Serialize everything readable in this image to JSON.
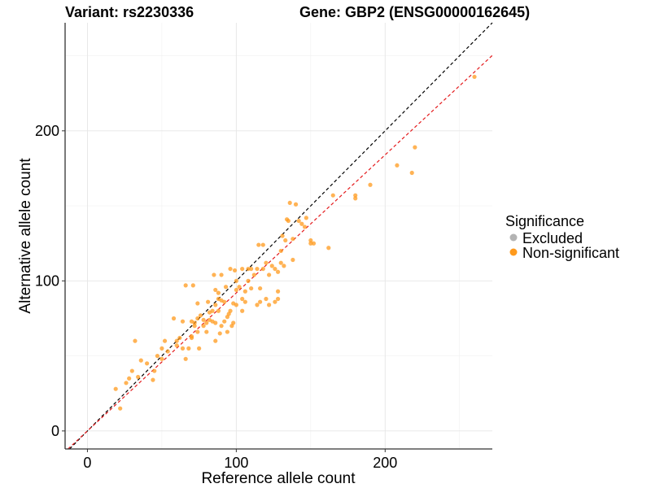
{
  "chart_data": {
    "type": "scatter",
    "title_left": "Variant: rs2230336",
    "title_right": "Gene: GBP2 (ENSG00000162645)",
    "xlabel": "Reference allele count",
    "ylabel": "Alternative allele count",
    "xlim": [
      -15,
      272
    ],
    "ylim": [
      -12,
      272
    ],
    "xticks": [
      0,
      100,
      200
    ],
    "yticks": [
      0,
      100,
      200
    ],
    "grid": true,
    "legend": {
      "title": "Significance",
      "placement": "right",
      "entries": [
        {
          "name": "Excluded",
          "color": "#b3b3b3"
        },
        {
          "name": "Non-significant",
          "color": "#ff9a1c"
        }
      ]
    },
    "reference_lines": [
      {
        "name": "identity",
        "color": "#000000",
        "slope": 1.0,
        "intercept": 0
      },
      {
        "name": "fit",
        "color": "#e41a1c",
        "slope": 0.92,
        "intercept": 0
      }
    ],
    "series": [
      {
        "name": "Non-significant",
        "color": "#ff9a1c",
        "points": [
          [
            19,
            28
          ],
          [
            22,
            15
          ],
          [
            26,
            32
          ],
          [
            28,
            35
          ],
          [
            30,
            40
          ],
          [
            32,
            60
          ],
          [
            34,
            36
          ],
          [
            36,
            47
          ],
          [
            40,
            45
          ],
          [
            44,
            34
          ],
          [
            45,
            40
          ],
          [
            47,
            50
          ],
          [
            50,
            55
          ],
          [
            50,
            48
          ],
          [
            52,
            60
          ],
          [
            54,
            53
          ],
          [
            58,
            75
          ],
          [
            60,
            60
          ],
          [
            60,
            57
          ],
          [
            62,
            62
          ],
          [
            64,
            55
          ],
          [
            64,
            73
          ],
          [
            66,
            48
          ],
          [
            66,
            97
          ],
          [
            68,
            55
          ],
          [
            70,
            62
          ],
          [
            70,
            73
          ],
          [
            70,
            63
          ],
          [
            71,
            97
          ],
          [
            72,
            72
          ],
          [
            72,
            70
          ],
          [
            74,
            85
          ],
          [
            74,
            66
          ],
          [
            74,
            75
          ],
          [
            75,
            55
          ],
          [
            76,
            77
          ],
          [
            78,
            74
          ],
          [
            78,
            70
          ],
          [
            80,
            66
          ],
          [
            80,
            72
          ],
          [
            81,
            86
          ],
          [
            82,
            74
          ],
          [
            82,
            79
          ],
          [
            84,
            80
          ],
          [
            84,
            73
          ],
          [
            85,
            104
          ],
          [
            86,
            72
          ],
          [
            86,
            94
          ],
          [
            86,
            84
          ],
          [
            86,
            60
          ],
          [
            88,
            92
          ],
          [
            88,
            80
          ],
          [
            88,
            88
          ],
          [
            89,
            65
          ],
          [
            90,
            70
          ],
          [
            90,
            104
          ],
          [
            90,
            87
          ],
          [
            92,
            86
          ],
          [
            92,
            73
          ],
          [
            93,
            96
          ],
          [
            94,
            76
          ],
          [
            94,
            66
          ],
          [
            95,
            78
          ],
          [
            96,
            108
          ],
          [
            96,
            80
          ],
          [
            97,
            70
          ],
          [
            98,
            85
          ],
          [
            98,
            72
          ],
          [
            99,
            107
          ],
          [
            100,
            100
          ],
          [
            100,
            94
          ],
          [
            100,
            84
          ],
          [
            102,
            96
          ],
          [
            104,
            108
          ],
          [
            104,
            80
          ],
          [
            104,
            88
          ],
          [
            106,
            93
          ],
          [
            106,
            86
          ],
          [
            108,
            100
          ],
          [
            108,
            108
          ],
          [
            110,
            95
          ],
          [
            110,
            108
          ],
          [
            112,
            104
          ],
          [
            114,
            84
          ],
          [
            114,
            108
          ],
          [
            115,
            124
          ],
          [
            116,
            95
          ],
          [
            116,
            86
          ],
          [
            118,
            124
          ],
          [
            118,
            108
          ],
          [
            120,
            88
          ],
          [
            120,
            112
          ],
          [
            122,
            84
          ],
          [
            122,
            104
          ],
          [
            124,
            110
          ],
          [
            126,
            86
          ],
          [
            126,
            108
          ],
          [
            128,
            88
          ],
          [
            128,
            106
          ],
          [
            128,
            93
          ],
          [
            130,
            112
          ],
          [
            130,
            120
          ],
          [
            131,
            130
          ],
          [
            132,
            110
          ],
          [
            133,
            127
          ],
          [
            134,
            141
          ],
          [
            135,
            140
          ],
          [
            136,
            152
          ],
          [
            138,
            114
          ],
          [
            138,
            128
          ],
          [
            140,
            151
          ],
          [
            142,
            140
          ],
          [
            144,
            138
          ],
          [
            146,
            136
          ],
          [
            147,
            142
          ],
          [
            150,
            127
          ],
          [
            150,
            125
          ],
          [
            152,
            125
          ],
          [
            162,
            122
          ],
          [
            165,
            157
          ],
          [
            180,
            157
          ],
          [
            180,
            155
          ],
          [
            190,
            164
          ],
          [
            208,
            177
          ],
          [
            218,
            172
          ],
          [
            220,
            189
          ],
          [
            260,
            236
          ]
        ]
      }
    ]
  }
}
